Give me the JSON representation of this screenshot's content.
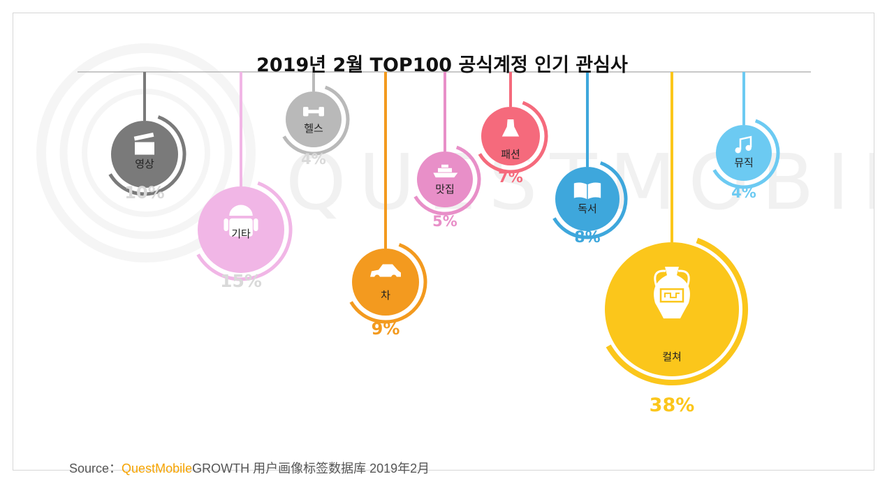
{
  "title": "2019년 2월 TOP100 공식계정 인기 관심사",
  "source": {
    "prefix": "Source：",
    "brand": "QuestMobile",
    "rest": "GROWTH 用户画像标签数据库  2019年2月"
  },
  "watermark": "QUESTMOBILE",
  "chart_data": {
    "type": "pie",
    "title": "2019년 2월 TOP100 공식계정 인기 관심사",
    "categories": [
      "영상",
      "기타",
      "헬스",
      "차",
      "맛집",
      "패션",
      "독서",
      "컬쳐",
      "뮤직"
    ],
    "values": [
      10,
      15,
      4,
      9,
      5,
      7,
      8,
      38,
      4
    ],
    "value_labels": [
      "10%",
      "15%",
      "4%",
      "9%",
      "5%",
      "7%",
      "8%",
      "38%",
      "4%"
    ],
    "icons": [
      "clapperboard-icon",
      "android-icon",
      "dumbbell-icon",
      "car-icon",
      "ship-icon",
      "dress-icon",
      "book-icon",
      "vase-icon",
      "music-note-icon"
    ],
    "colors": [
      "#7a7a7a",
      "#f1b6e6",
      "#b9b9b9",
      "#f39a1f",
      "#e88fc8",
      "#f56a7c",
      "#3ea7dc",
      "#fbc61b",
      "#6ccaf2"
    ],
    "label_colors": [
      "#d9d9d9",
      "#d9d9d9",
      "#d9d9d9",
      "#f39a1f",
      "#e88fc8",
      "#f56a7c",
      "#3ea7dc",
      "#fbc61b",
      "#6ccaf2"
    ]
  }
}
